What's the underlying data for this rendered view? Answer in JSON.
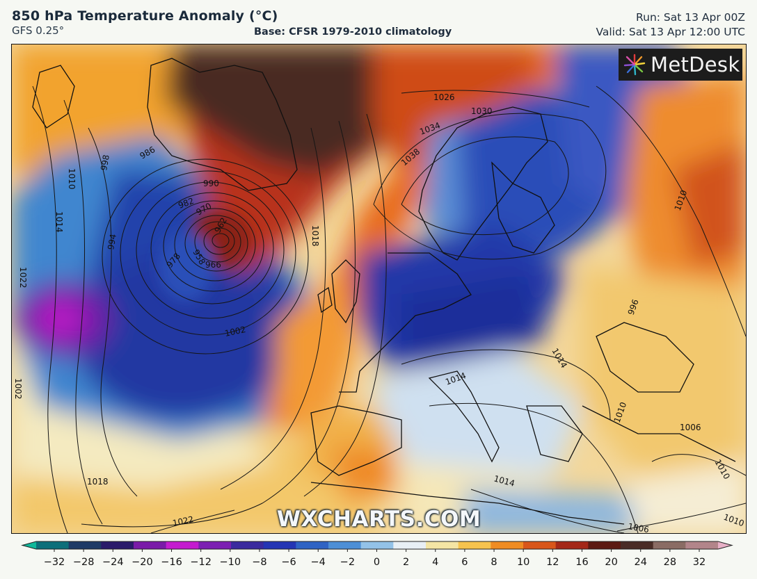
{
  "header": {
    "title": "850 hPa Temperature Anomaly (°C)",
    "model": "GFS 0.25°",
    "base": "Base: CFSR 1979-2010 climatology",
    "run": "Run: Sat 13 Apr 00Z",
    "valid": "Valid: Sat 13 Apr 12:00 UTC"
  },
  "logo": {
    "icon": "metdesk-burst-icon",
    "text": "MetDesk"
  },
  "watermark": "WXCHARTS.COM",
  "isobar_labels": [
    "1010",
    "998",
    "994",
    "990",
    "982",
    "978",
    "970",
    "962",
    "958",
    "966",
    "1002",
    "1018",
    "1014",
    "1022",
    "1026",
    "1030",
    "1034",
    "1038",
    "1010",
    "1014",
    "1014",
    "1010",
    "1010",
    "1006",
    "1010",
    "1018",
    "1022",
    "1014",
    "986",
    "1002",
    "996",
    "1006"
  ],
  "legend": {
    "ticks": [
      "−32",
      "−28",
      "−24",
      "−20",
      "−16",
      "−12",
      "−10",
      "−8",
      "−6",
      "−4",
      "−2",
      "0",
      "2",
      "4",
      "6",
      "8",
      "10",
      "12",
      "16",
      "20",
      "24",
      "28",
      "32"
    ],
    "colors": [
      "#10b89a",
      "#0d6f7a",
      "#1e3a66",
      "#2a1a6a",
      "#7a1aa8",
      "#c41bcf",
      "#7c1fb2",
      "#3a2a9e",
      "#2435b4",
      "#2f63c4",
      "#4d8fd6",
      "#93c2e8",
      "#e8eff5",
      "#f4e5a4",
      "#f6c34e",
      "#ef8c22",
      "#d8561a",
      "#a42818",
      "#5c1a12",
      "#4a2c26",
      "#8a6c64",
      "#b2858a",
      "#e7b0c6"
    ]
  }
}
